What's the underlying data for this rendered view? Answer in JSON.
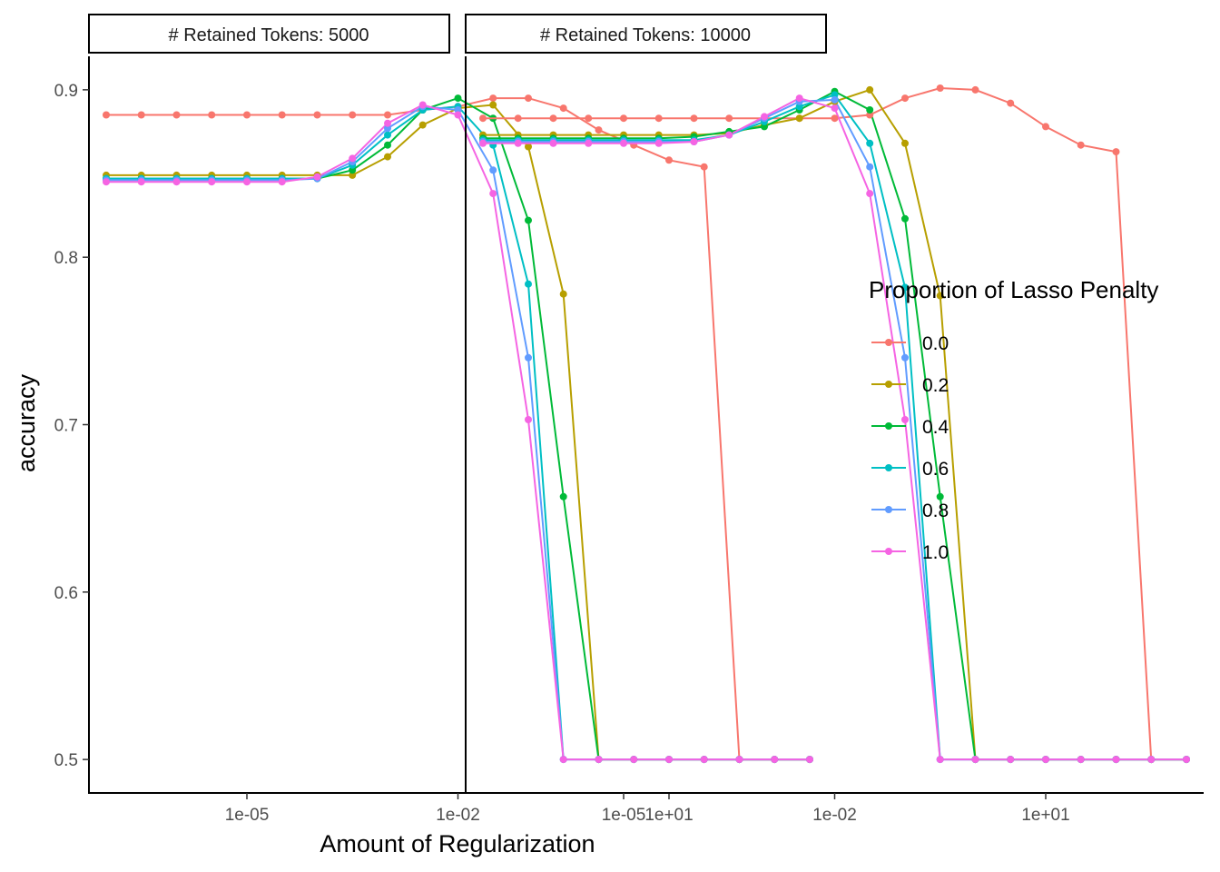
{
  "chart_data": {
    "type": "line",
    "x_scale": "log10",
    "x": [
      1e-07,
      3.16e-07,
      1e-06,
      3.16e-06,
      1e-05,
      3.16e-05,
      0.0001,
      0.000316,
      0.001,
      0.00316,
      0.01,
      0.0316,
      0.1,
      0.316,
      1,
      3.16,
      10,
      31.6,
      100,
      316,
      1000
    ],
    "xlabel": "Amount of Regularization",
    "ylabel": "accuracy",
    "ylim": [
      0.48,
      0.92
    ],
    "x_ticks": [
      {
        "value": 1e-05,
        "label": "1e-05"
      },
      {
        "value": 0.01,
        "label": "1e-02"
      },
      {
        "value": 10,
        "label": "1e+01"
      }
    ],
    "y_ticks": [
      {
        "value": 0.5,
        "label": "0.5"
      },
      {
        "value": 0.6,
        "label": "0.6"
      },
      {
        "value": 0.7,
        "label": "0.7"
      },
      {
        "value": 0.8,
        "label": "0.8"
      },
      {
        "value": 0.9,
        "label": "0.9"
      }
    ],
    "grid": false,
    "legend": {
      "title": "Proportion of Lasso Penalty",
      "position": "right"
    },
    "series_colors": [
      "#F8766D",
      "#B79F00",
      "#00BA38",
      "#00BFC4",
      "#619CFF",
      "#F564E3"
    ],
    "facets": [
      {
        "label": "# Retained Tokens: 5000",
        "series": [
          {
            "name": "0.0",
            "values": [
              0.885,
              0.885,
              0.885,
              0.885,
              0.885,
              0.885,
              0.885,
              0.885,
              0.885,
              0.888,
              0.89,
              0.895,
              0.895,
              0.889,
              0.876,
              0.867,
              0.858,
              0.854,
              0.5,
              0.5,
              0.5
            ]
          },
          {
            "name": "0.2",
            "values": [
              0.849,
              0.849,
              0.849,
              0.849,
              0.849,
              0.849,
              0.849,
              0.849,
              0.86,
              0.879,
              0.889,
              0.891,
              0.866,
              0.778,
              0.5,
              0.5,
              0.5,
              0.5,
              0.5,
              0.5,
              0.5
            ]
          },
          {
            "name": "0.4",
            "values": [
              0.847,
              0.847,
              0.847,
              0.847,
              0.847,
              0.847,
              0.847,
              0.852,
              0.867,
              0.888,
              0.895,
              0.883,
              0.822,
              0.657,
              0.5,
              0.5,
              0.5,
              0.5,
              0.5,
              0.5,
              0.5
            ]
          },
          {
            "name": "0.6",
            "values": [
              0.847,
              0.847,
              0.847,
              0.847,
              0.847,
              0.847,
              0.847,
              0.855,
              0.873,
              0.888,
              0.89,
              0.867,
              0.784,
              0.5,
              0.5,
              0.5,
              0.5,
              0.5,
              0.5,
              0.5,
              0.5
            ]
          },
          {
            "name": "0.8",
            "values": [
              0.846,
              0.846,
              0.846,
              0.846,
              0.846,
              0.846,
              0.847,
              0.857,
              0.877,
              0.89,
              0.888,
              0.852,
              0.74,
              0.5,
              0.5,
              0.5,
              0.5,
              0.5,
              0.5,
              0.5,
              0.5
            ]
          },
          {
            "name": "1.0",
            "values": [
              0.845,
              0.845,
              0.845,
              0.845,
              0.845,
              0.845,
              0.848,
              0.859,
              0.88,
              0.891,
              0.885,
              0.838,
              0.703,
              0.5,
              0.5,
              0.5,
              0.5,
              0.5,
              0.5,
              0.5,
              0.5
            ]
          }
        ]
      },
      {
        "label": "# Retained Tokens: 10000",
        "series": [
          {
            "name": "0.0",
            "values": [
              0.883,
              0.883,
              0.883,
              0.883,
              0.883,
              0.883,
              0.883,
              0.883,
              0.883,
              0.883,
              0.883,
              0.885,
              0.895,
              0.901,
              0.9,
              0.892,
              0.878,
              0.867,
              0.863,
              0.5,
              0.5
            ]
          },
          {
            "name": "0.2",
            "values": [
              0.873,
              0.873,
              0.873,
              0.873,
              0.873,
              0.873,
              0.873,
              0.874,
              0.879,
              0.883,
              0.893,
              0.9,
              0.868,
              0.777,
              0.5,
              0.5,
              0.5,
              0.5,
              0.5,
              0.5,
              0.5
            ]
          },
          {
            "name": "0.4",
            "values": [
              0.871,
              0.871,
              0.871,
              0.871,
              0.871,
              0.871,
              0.872,
              0.875,
              0.878,
              0.888,
              0.899,
              0.888,
              0.823,
              0.657,
              0.5,
              0.5,
              0.5,
              0.5,
              0.5,
              0.5,
              0.5
            ]
          },
          {
            "name": "0.6",
            "values": [
              0.87,
              0.87,
              0.87,
              0.87,
              0.87,
              0.87,
              0.87,
              0.873,
              0.881,
              0.89,
              0.897,
              0.868,
              0.782,
              0.5,
              0.5,
              0.5,
              0.5,
              0.5,
              0.5,
              0.5,
              0.5
            ]
          },
          {
            "name": "0.8",
            "values": [
              0.869,
              0.869,
              0.869,
              0.869,
              0.869,
              0.869,
              0.869,
              0.873,
              0.883,
              0.893,
              0.894,
              0.854,
              0.74,
              0.5,
              0.5,
              0.5,
              0.5,
              0.5,
              0.5,
              0.5,
              0.5
            ]
          },
          {
            "name": "1.0",
            "values": [
              0.868,
              0.868,
              0.868,
              0.868,
              0.868,
              0.868,
              0.869,
              0.873,
              0.884,
              0.895,
              0.889,
              0.838,
              0.703,
              0.5,
              0.5,
              0.5,
              0.5,
              0.5,
              0.5,
              0.5,
              0.5
            ]
          }
        ]
      }
    ]
  }
}
